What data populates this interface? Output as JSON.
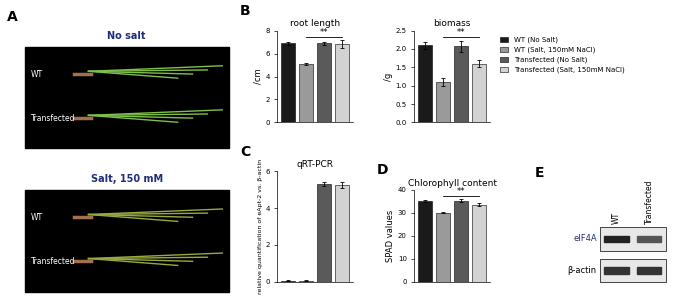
{
  "chart_data": [
    {
      "panel": "B",
      "type": "bar",
      "title": "root length",
      "ylabel": "/cm",
      "ylim": [
        0,
        8
      ],
      "yticks": [
        0,
        2,
        4,
        6,
        8
      ],
      "tick_labels": "y",
      "series": [
        {
          "name": "WT (No Salt)",
          "color": "#1a1a1a",
          "values": [
            6.9
          ],
          "errors": [
            0.15
          ]
        },
        {
          "name": "WT (Salt, 150mM NaCl)",
          "color": "#9a9a9a",
          "values": [
            5.1
          ],
          "errors": [
            0.1
          ]
        },
        {
          "name": "Transfected (No Salt)",
          "color": "#5a5a5a",
          "values": [
            6.9
          ],
          "errors": [
            0.15
          ]
        },
        {
          "name": "Transfected (Salt, 150mM NaCl)",
          "color": "#d2d2d2",
          "values": [
            6.8
          ],
          "errors": [
            0.35
          ]
        }
      ],
      "significance": {
        "text": "**",
        "bars": [
          1,
          3
        ]
      }
    },
    {
      "panel": "B",
      "type": "bar",
      "title": "biomass",
      "ylabel": "/g",
      "ylim": [
        0,
        2.5
      ],
      "yticks": [
        {
          "value": 0,
          "label": "0.0"
        },
        0.5,
        {
          "value": 1,
          "label": "1.0"
        },
        1.5,
        {
          "value": 2,
          "label": "2.0"
        },
        2.5
      ],
      "tick_labels": "y",
      "legend": "upper left",
      "series": [
        {
          "name": "WT (No Salt)",
          "color": "#1a1a1a",
          "values": [
            2.1
          ],
          "errors": [
            0.1
          ]
        },
        {
          "name": "WT (Salt, 150mM NaCl)",
          "color": "#9a9a9a",
          "values": [
            1.1
          ],
          "errors": [
            0.1
          ]
        },
        {
          "name": "Transfected (No Salt)",
          "color": "#5a5a5a",
          "values": [
            2.07
          ],
          "errors": [
            0.15
          ]
        },
        {
          "name": "Transfected (Salt, 150mM NaCl)",
          "color": "#d2d2d2",
          "values": [
            1.6
          ],
          "errors": [
            0.1
          ]
        }
      ],
      "significance": {
        "text": "**",
        "bars": [
          1,
          3
        ]
      }
    },
    {
      "panel": "C",
      "type": "bar",
      "title": "qRT-PCR",
      "ylabel": "relative quantification of eApt-2 vs. β-actin",
      "ylim": [
        0,
        6
      ],
      "yticks": [
        0,
        2,
        4,
        6
      ],
      "tick_labels": "y",
      "series": [
        {
          "name": "WT (No Salt)",
          "color": "#1a1a1a",
          "values": [
            0.05
          ],
          "errors": [
            0.02
          ]
        },
        {
          "name": "WT (Salt, 150mM NaCl)",
          "color": "#9a9a9a",
          "values": [
            0.05
          ],
          "errors": [
            0.02
          ]
        },
        {
          "name": "Transfected (No Salt)",
          "color": "#5a5a5a",
          "values": [
            5.3
          ],
          "errors": [
            0.1
          ]
        },
        {
          "name": "Transfected (Salt, 150mM NaCl)",
          "color": "#d2d2d2",
          "values": [
            5.25
          ],
          "errors": [
            0.15
          ]
        }
      ]
    },
    {
      "panel": "D",
      "type": "bar",
      "title": "Chlorophyll content",
      "ylabel": "SPAD values",
      "ylim": [
        0,
        40
      ],
      "yticks": [
        0,
        10,
        20,
        30,
        40
      ],
      "tick_labels": "y",
      "series": [
        {
          "name": "WT (No Salt)",
          "color": "#1a1a1a",
          "values": [
            35
          ],
          "errors": [
            0.5
          ]
        },
        {
          "name": "WT (Salt, 150mM NaCl)",
          "color": "#9a9a9a",
          "values": [
            30
          ],
          "errors": [
            0.3
          ]
        },
        {
          "name": "Transfected (No Salt)",
          "color": "#5a5a5a",
          "values": [
            35.3
          ],
          "errors": [
            0.5
          ]
        },
        {
          "name": "Transfected (Salt, 150mM NaCl)",
          "color": "#d2d2d2",
          "values": [
            33.5
          ],
          "errors": [
            0.8
          ]
        }
      ],
      "significance": {
        "text": "**",
        "bars": [
          1,
          3
        ]
      }
    }
  ],
  "photo_panels": [
    {
      "panel": "A",
      "images": [
        {
          "title": "No salt",
          "rows": [
            "WT",
            "Transfected"
          ]
        },
        {
          "title": "Salt, 150 mM",
          "rows": [
            "WT",
            "Transfected"
          ]
        }
      ]
    },
    {
      "panel": "E",
      "lanes": [
        "WT",
        "Transfected"
      ],
      "bands": [
        "eIF4A",
        "β-actin"
      ]
    }
  ]
}
